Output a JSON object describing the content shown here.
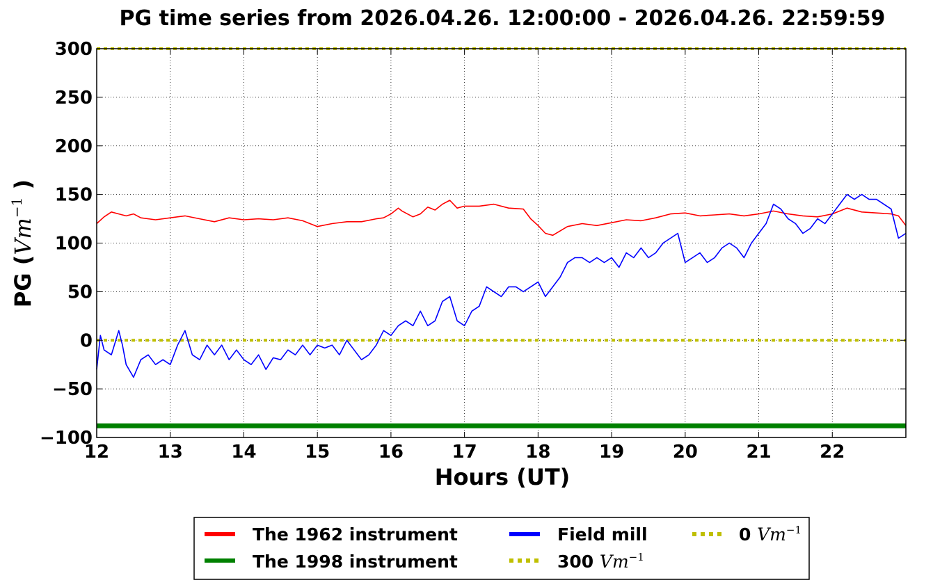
{
  "chart_data": {
    "type": "line",
    "title": "PG time series from 2026.04.26. 12:00:00 - 2026.04.26. 22:59:59",
    "xlabel": "Hours (UT)",
    "ylabel": {
      "prefix": "PG (",
      "math": "Vm",
      "sup": "−1",
      "suffix": " )"
    },
    "xlim": [
      12,
      23
    ],
    "ylim": [
      -100,
      300
    ],
    "x_ticks": [
      12,
      13,
      14,
      15,
      16,
      17,
      18,
      19,
      20,
      21,
      22
    ],
    "x_tick_labels": [
      "12",
      "13",
      "14",
      "15",
      "16",
      "17",
      "18",
      "19",
      "20",
      "21",
      "22"
    ],
    "y_ticks": [
      -100,
      -50,
      0,
      50,
      100,
      150,
      200,
      250,
      300
    ],
    "y_tick_labels": [
      "−100",
      "−50",
      "0",
      "50",
      "100",
      "150",
      "200",
      "250",
      "300"
    ],
    "grid": true,
    "legend_position": "bottom-center, below the axes, 3 columns",
    "series": [
      {
        "name": "The 1962 instrument",
        "color": "#ff0000",
        "style": "solid",
        "x": [
          12.0,
          12.1,
          12.2,
          12.3,
          12.4,
          12.5,
          12.6,
          12.8,
          13.0,
          13.2,
          13.4,
          13.6,
          13.8,
          14.0,
          14.2,
          14.4,
          14.6,
          14.8,
          15.0,
          15.2,
          15.4,
          15.6,
          15.8,
          15.9,
          16.0,
          16.1,
          16.15,
          16.3,
          16.4,
          16.5,
          16.6,
          16.7,
          16.8,
          16.9,
          17.0,
          17.2,
          17.4,
          17.6,
          17.8,
          17.9,
          18.0,
          18.1,
          18.2,
          18.4,
          18.6,
          18.8,
          19.0,
          19.2,
          19.4,
          19.6,
          19.8,
          20.0,
          20.2,
          20.4,
          20.6,
          20.8,
          21.0,
          21.2,
          21.4,
          21.6,
          21.8,
          22.0,
          22.2,
          22.4,
          22.6,
          22.8,
          22.9,
          23.0
        ],
        "values": [
          120,
          127,
          132,
          130,
          128,
          130,
          126,
          124,
          126,
          128,
          125,
          122,
          126,
          124,
          125,
          124,
          126,
          123,
          117,
          120,
          122,
          122,
          125,
          126,
          130,
          136,
          133,
          127,
          130,
          137,
          134,
          140,
          144,
          136,
          138,
          138,
          140,
          136,
          135,
          125,
          118,
          110,
          108,
          117,
          120,
          118,
          121,
          124,
          123,
          126,
          130,
          131,
          128,
          129,
          130,
          128,
          130,
          133,
          130,
          128,
          127,
          130,
          136,
          132,
          131,
          130,
          128,
          118
        ]
      },
      {
        "name": "The 1998 instrument",
        "color": "#008000",
        "style": "solid",
        "x": [
          12,
          23
        ],
        "values": [
          -88,
          -88
        ]
      },
      {
        "name": "Field mill",
        "color": "#0000ff",
        "style": "solid",
        "x": [
          12.0,
          12.05,
          12.1,
          12.2,
          12.3,
          12.35,
          12.4,
          12.5,
          12.6,
          12.7,
          12.8,
          12.9,
          13.0,
          13.1,
          13.2,
          13.3,
          13.4,
          13.5,
          13.6,
          13.7,
          13.8,
          13.9,
          14.0,
          14.1,
          14.2,
          14.3,
          14.4,
          14.5,
          14.6,
          14.7,
          14.8,
          14.9,
          15.0,
          15.1,
          15.2,
          15.3,
          15.4,
          15.5,
          15.6,
          15.7,
          15.8,
          15.9,
          16.0,
          16.1,
          16.2,
          16.3,
          16.4,
          16.5,
          16.6,
          16.7,
          16.8,
          16.9,
          17.0,
          17.1,
          17.2,
          17.3,
          17.4,
          17.5,
          17.6,
          17.7,
          17.8,
          17.9,
          18.0,
          18.1,
          18.2,
          18.3,
          18.4,
          18.5,
          18.6,
          18.7,
          18.8,
          18.9,
          19.0,
          19.1,
          19.2,
          19.3,
          19.4,
          19.5,
          19.6,
          19.7,
          19.8,
          19.9,
          20.0,
          20.1,
          20.2,
          20.3,
          20.4,
          20.5,
          20.6,
          20.7,
          20.8,
          20.9,
          21.0,
          21.1,
          21.2,
          21.3,
          21.4,
          21.5,
          21.6,
          21.7,
          21.8,
          21.9,
          22.0,
          22.1,
          22.2,
          22.3,
          22.4,
          22.5,
          22.6,
          22.7,
          22.8,
          22.85,
          22.9,
          23.0
        ],
        "values": [
          -30,
          5,
          -10,
          -15,
          10,
          -5,
          -25,
          -38,
          -20,
          -15,
          -25,
          -20,
          -25,
          -5,
          10,
          -15,
          -20,
          -5,
          -15,
          -5,
          -20,
          -10,
          -20,
          -25,
          -15,
          -30,
          -18,
          -20,
          -10,
          -15,
          -5,
          -15,
          -5,
          -8,
          -5,
          -15,
          0,
          -10,
          -20,
          -15,
          -5,
          10,
          5,
          15,
          20,
          15,
          30,
          15,
          20,
          40,
          45,
          20,
          15,
          30,
          35,
          55,
          50,
          45,
          55,
          55,
          50,
          55,
          60,
          45,
          55,
          65,
          80,
          85,
          85,
          80,
          85,
          80,
          85,
          75,
          90,
          85,
          95,
          85,
          90,
          100,
          105,
          110,
          80,
          85,
          90,
          80,
          85,
          95,
          100,
          95,
          85,
          100,
          110,
          120,
          140,
          135,
          125,
          120,
          110,
          115,
          125,
          120,
          130,
          140,
          150,
          145,
          150,
          145,
          145,
          140,
          135,
          120,
          105,
          110
        ]
      },
      {
        "name": "300 Vm⁻¹",
        "name_prefix": "300 ",
        "name_math": "Vm",
        "name_sup": "−1",
        "color": "#bfbf00",
        "style": "dotted",
        "x": [
          12,
          23
        ],
        "values": [
          300,
          300
        ]
      },
      {
        "name": "0 Vm⁻¹",
        "name_prefix": "0 ",
        "name_math": "Vm",
        "name_sup": "−1",
        "color": "#bfbf00",
        "style": "dotted",
        "x": [
          12,
          23
        ],
        "values": [
          0,
          0
        ]
      }
    ]
  }
}
